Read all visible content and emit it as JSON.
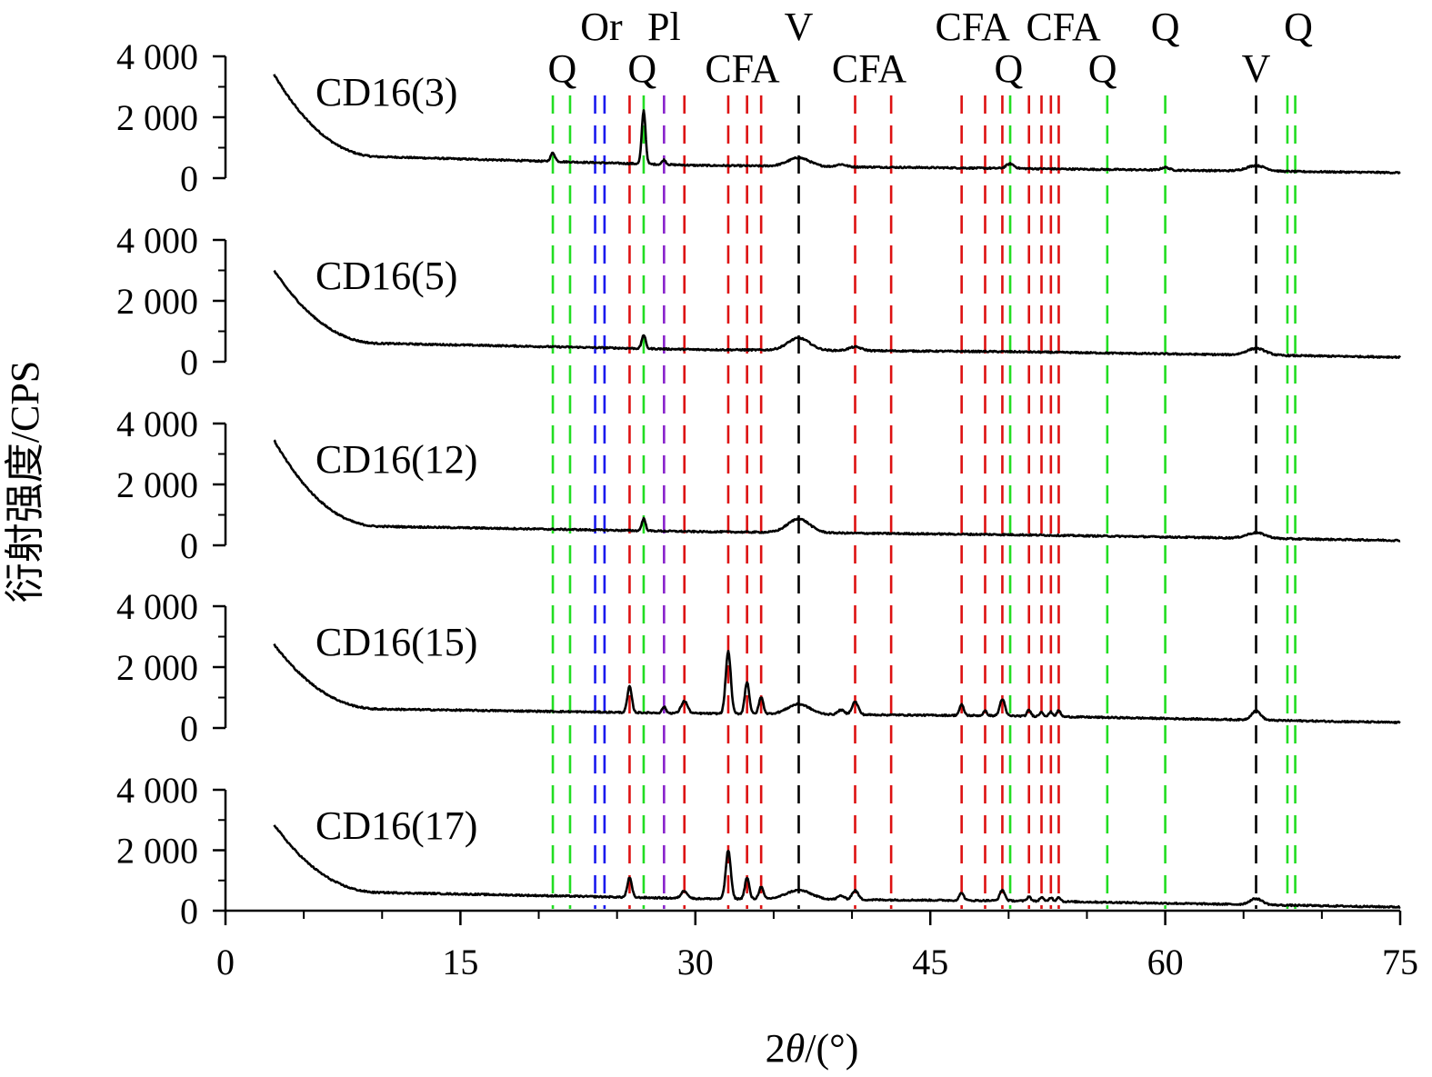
{
  "chart_data": {
    "type": "line",
    "ylabel": "衍射强度/CPS",
    "xlabel_prefix": "2",
    "xlabel_theta": "θ",
    "xlabel_suffix": "/(°)",
    "xlim": [
      0,
      75
    ],
    "x_ticks": [
      0,
      15,
      30,
      45,
      60,
      75
    ],
    "x_tick_labels": [
      "0",
      "15",
      "30",
      "45",
      "60",
      "75"
    ],
    "ylim": [
      0,
      4000
    ],
    "y_ticks": [
      0,
      2000,
      4000
    ],
    "y_tick_labels": [
      "0",
      "2 000",
      "4 000"
    ],
    "colors": {
      "Q": "#22dd22",
      "Or": "#1a1aee",
      "Pl": "#8822cc",
      "CFA": "#dd1111",
      "V": "#000000",
      "trace": "#000000"
    },
    "reference_lines": [
      {
        "phase": "Q",
        "x": 20.9
      },
      {
        "phase": "Q",
        "x": 22.0
      },
      {
        "phase": "Or",
        "x": 23.6
      },
      {
        "phase": "Or",
        "x": 24.2
      },
      {
        "phase": "CFA",
        "x": 25.8
      },
      {
        "phase": "Q",
        "x": 26.7
      },
      {
        "phase": "Pl",
        "x": 28.0
      },
      {
        "phase": "CFA",
        "x": 29.3
      },
      {
        "phase": "CFA",
        "x": 32.1
      },
      {
        "phase": "CFA",
        "x": 33.3
      },
      {
        "phase": "CFA",
        "x": 34.2
      },
      {
        "phase": "V",
        "x": 36.6
      },
      {
        "phase": "CFA",
        "x": 40.2
      },
      {
        "phase": "CFA",
        "x": 42.5
      },
      {
        "phase": "CFA",
        "x": 47.0
      },
      {
        "phase": "CFA",
        "x": 48.5
      },
      {
        "phase": "CFA",
        "x": 49.6
      },
      {
        "phase": "Q",
        "x": 50.1
      },
      {
        "phase": "CFA",
        "x": 51.3
      },
      {
        "phase": "CFA",
        "x": 52.1
      },
      {
        "phase": "CFA",
        "x": 52.7
      },
      {
        "phase": "CFA",
        "x": 53.2
      },
      {
        "phase": "Q",
        "x": 56.3
      },
      {
        "phase": "Q",
        "x": 60.0
      },
      {
        "phase": "V",
        "x": 65.8
      },
      {
        "phase": "Q",
        "x": 67.8
      },
      {
        "phase": "Q",
        "x": 68.3
      }
    ],
    "phase_labels": [
      {
        "text": "Or",
        "x": 24.0,
        "row": "top"
      },
      {
        "text": "Pl",
        "x": 28.0,
        "row": "top"
      },
      {
        "text": "V",
        "x": 36.6,
        "row": "top"
      },
      {
        "text": "CFA",
        "x": 47.7,
        "row": "top"
      },
      {
        "text": "CFA",
        "x": 53.5,
        "row": "top"
      },
      {
        "text": "Q",
        "x": 60.0,
        "row": "top"
      },
      {
        "text": "Q",
        "x": 68.5,
        "row": "top"
      },
      {
        "text": "Q",
        "x": 21.5,
        "row": "bottom"
      },
      {
        "text": "Q",
        "x": 26.6,
        "row": "bottom"
      },
      {
        "text": "CFA",
        "x": 33.0,
        "row": "bottom"
      },
      {
        "text": "CFA",
        "x": 41.1,
        "row": "bottom"
      },
      {
        "text": "Q",
        "x": 50.0,
        "row": "bottom"
      },
      {
        "text": "Q",
        "x": 56.0,
        "row": "bottom"
      },
      {
        "text": "V",
        "x": 65.8,
        "row": "bottom"
      }
    ],
    "series": [
      {
        "name": "CD16(3)",
        "x_start": 3.1,
        "start_value": 3400,
        "baseline": [
          [
            10,
            700
          ],
          [
            30,
            420
          ],
          [
            50,
            320
          ],
          [
            75,
            180
          ]
        ],
        "peaks": [
          [
            20.9,
            280,
            0.14
          ],
          [
            26.7,
            1750,
            0.12
          ],
          [
            28.0,
            150,
            0.12
          ],
          [
            36.6,
            280,
            0.7
          ],
          [
            39.3,
            80,
            0.3
          ],
          [
            50.1,
            150,
            0.25
          ],
          [
            60.0,
            90,
            0.25
          ],
          [
            65.8,
            180,
            0.6
          ]
        ]
      },
      {
        "name": "CD16(5)",
        "x_start": 3.1,
        "start_value": 3000,
        "baseline": [
          [
            10,
            600
          ],
          [
            30,
            400
          ],
          [
            50,
            330
          ],
          [
            75,
            150
          ]
        ],
        "peaks": [
          [
            26.7,
            450,
            0.12
          ],
          [
            36.6,
            400,
            0.7
          ],
          [
            40.2,
            120,
            0.4
          ],
          [
            65.8,
            220,
            0.6
          ]
        ]
      },
      {
        "name": "CD16(12)",
        "x_start": 3.1,
        "start_value": 3450,
        "baseline": [
          [
            10,
            620
          ],
          [
            30,
            450
          ],
          [
            50,
            350
          ],
          [
            75,
            160
          ]
        ],
        "peaks": [
          [
            26.7,
            400,
            0.12
          ],
          [
            36.6,
            450,
            0.7
          ],
          [
            65.8,
            180,
            0.6
          ]
        ]
      },
      {
        "name": "CD16(15)",
        "x_start": 3.1,
        "start_value": 2750,
        "baseline": [
          [
            10,
            620
          ],
          [
            30,
            480
          ],
          [
            50,
            400
          ],
          [
            75,
            180
          ]
        ],
        "peaks": [
          [
            25.8,
            850,
            0.14
          ],
          [
            28.0,
            200,
            0.12
          ],
          [
            29.3,
            400,
            0.2
          ],
          [
            32.1,
            2050,
            0.16
          ],
          [
            33.3,
            1050,
            0.14
          ],
          [
            34.2,
            550,
            0.14
          ],
          [
            36.6,
            330,
            0.7
          ],
          [
            39.3,
            150,
            0.2
          ],
          [
            40.2,
            420,
            0.2
          ],
          [
            47.0,
            350,
            0.14
          ],
          [
            48.5,
            150,
            0.12
          ],
          [
            49.6,
            550,
            0.16
          ],
          [
            51.3,
            200,
            0.12
          ],
          [
            52.1,
            150,
            0.12
          ],
          [
            52.7,
            150,
            0.12
          ],
          [
            53.2,
            200,
            0.12
          ],
          [
            65.8,
            300,
            0.3
          ]
        ]
      },
      {
        "name": "CD16(17)",
        "x_start": 3.1,
        "start_value": 2850,
        "baseline": [
          [
            10,
            600
          ],
          [
            30,
            400
          ],
          [
            50,
            330
          ],
          [
            75,
            120
          ]
        ],
        "peaks": [
          [
            25.8,
            650,
            0.14
          ],
          [
            29.3,
            250,
            0.2
          ],
          [
            32.1,
            1600,
            0.16
          ],
          [
            33.3,
            700,
            0.14
          ],
          [
            34.2,
            400,
            0.14
          ],
          [
            36.6,
            300,
            0.8
          ],
          [
            39.3,
            130,
            0.2
          ],
          [
            40.2,
            300,
            0.2
          ],
          [
            47.0,
            250,
            0.14
          ],
          [
            49.6,
            350,
            0.16
          ],
          [
            51.3,
            150,
            0.12
          ],
          [
            52.1,
            130,
            0.12
          ],
          [
            52.7,
            130,
            0.12
          ],
          [
            53.2,
            150,
            0.12
          ],
          [
            65.8,
            200,
            0.4
          ]
        ]
      }
    ]
  }
}
